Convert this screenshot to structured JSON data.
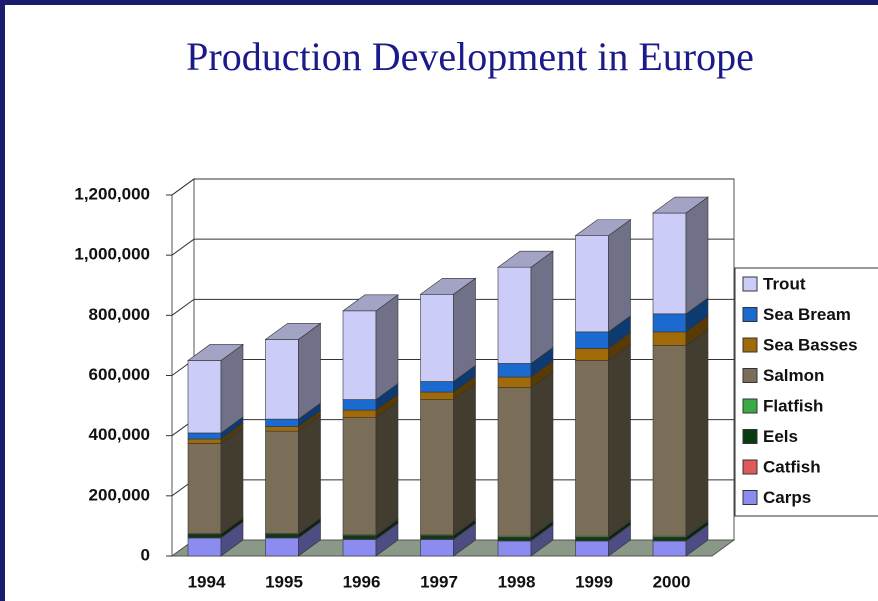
{
  "chart_data": {
    "type": "bar3d_stacked",
    "title": "Production Development in Europe",
    "categories": [
      "1994",
      "1995",
      "1996",
      "1997",
      "1998",
      "1999",
      "2000"
    ],
    "series": [
      {
        "name": "Carps",
        "color": "#8c8cf0",
        "values": [
          60000,
          60000,
          55000,
          55000,
          50000,
          50000,
          50000
        ]
      },
      {
        "name": "Catfish",
        "color": "#e05a5a",
        "values": [
          2000,
          2000,
          2000,
          2000,
          2000,
          2000,
          2000
        ]
      },
      {
        "name": "Eels",
        "color": "#0a3a10",
        "values": [
          10000,
          10000,
          10000,
          10000,
          10000,
          10000,
          10000
        ]
      },
      {
        "name": "Flatfish",
        "color": "#3aaa44",
        "values": [
          2000,
          3000,
          3000,
          3000,
          4000,
          4000,
          4000
        ]
      },
      {
        "name": "Salmon",
        "color": "#7a6e58",
        "values": [
          300000,
          340000,
          390000,
          450000,
          494000,
          584000,
          634000
        ]
      },
      {
        "name": "Sea Basses",
        "color": "#a06a08",
        "values": [
          15000,
          15000,
          25000,
          25000,
          35000,
          40000,
          45000
        ]
      },
      {
        "name": "Sea Bream",
        "color": "#1a6ad0",
        "values": [
          20000,
          25000,
          35000,
          35000,
          45000,
          55000,
          60000
        ]
      },
      {
        "name": "Trout",
        "color": "#ccccf8",
        "values": [
          241000,
          265000,
          295000,
          290000,
          320000,
          320000,
          335000
        ]
      }
    ],
    "ylim": [
      0,
      1200000
    ],
    "yticks": [
      0,
      {
        "value": 200000,
        "label": "200,000"
      },
      {
        "value": 400000,
        "label": "400,000"
      },
      {
        "value": 600000,
        "label": "600,000"
      },
      {
        "value": 800000,
        "label": "800,000"
      },
      {
        "value": 1000000,
        "label": "1,000,000"
      },
      {
        "value": 1200000,
        "label": "1,200,000"
      }
    ],
    "grid": true,
    "legend": "right"
  }
}
